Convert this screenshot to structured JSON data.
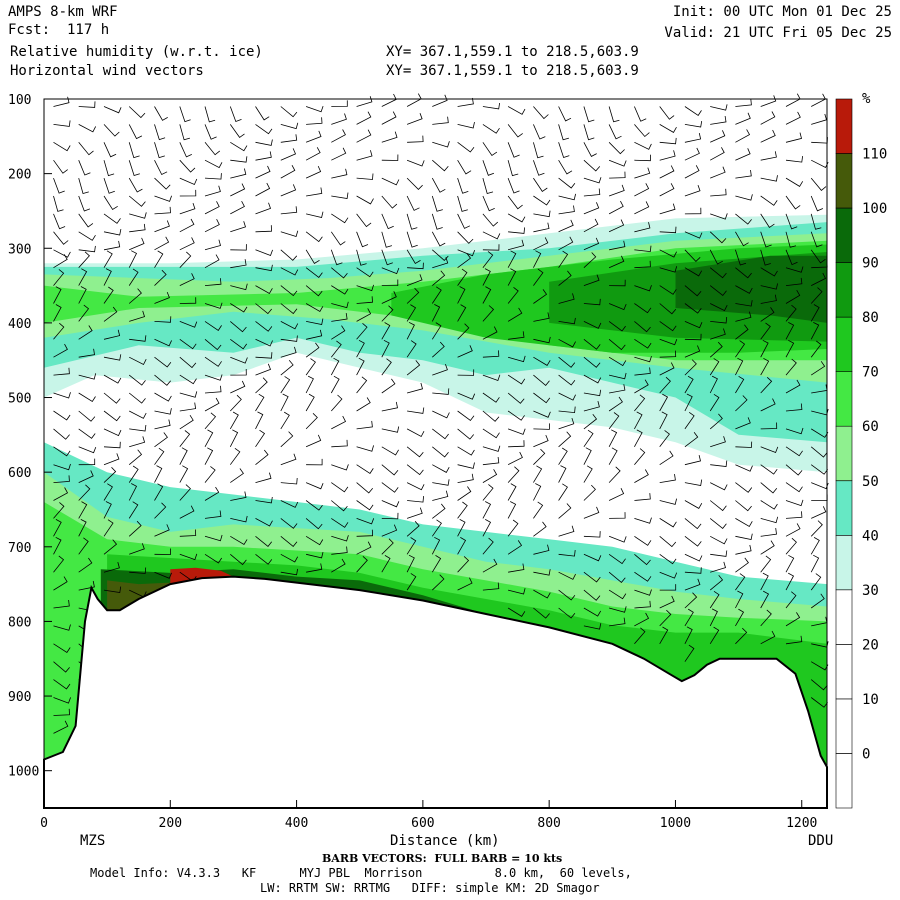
{
  "header": {
    "model": "AMPS 8-km WRF",
    "fcst": "Fcst:  117 h",
    "field1": "Relative humidity (w.r.t. ice)",
    "field2": "Horizontal wind vectors",
    "init": "Init: 00 UTC Mon 01 Dec 25",
    "valid": "Valid: 21 UTC Fri 05 Dec 25",
    "xy1": "XY= 367.1,559.1 to 218.5,603.9",
    "xy2": "XY= 367.1,559.1 to 218.5,603.9"
  },
  "footer": {
    "barb_note": "BARB VECTORS:  FULL BARB = 10 kts",
    "model_info": "Model Info: V4.3.3   KF      MYJ PBL  Morrison          8.0 km,  60 levels,",
    "physics": "LW: RRTM SW: RRTMG   DIFF: simple KM: 2D Smagor"
  },
  "chart_data": {
    "type": "heatmap",
    "xlabel": "Distance (km)",
    "ylabel": "",
    "xlim": [
      0,
      1240
    ],
    "ylim": [
      1050,
      100
    ],
    "x_ticks": [
      0,
      200,
      400,
      600,
      800,
      1000,
      1200
    ],
    "y_ticks": [
      100,
      200,
      300,
      400,
      500,
      600,
      700,
      800,
      900,
      1000
    ],
    "x_end_labels": {
      "left": "MZS",
      "right": "DDU"
    },
    "colorbar": {
      "unit": "%",
      "levels": [
        0,
        10,
        20,
        30,
        40,
        50,
        60,
        70,
        80,
        90,
        100,
        110
      ],
      "colors": [
        "#ffffff",
        "#ffffff",
        "#ffffff",
        "#ffffff",
        "#c8f5e8",
        "#66e8c4",
        "#8ff08f",
        "#44e844",
        "#1fc81f",
        "#109a10",
        "#0a6a0a",
        "#455a0a",
        "#b81a0a"
      ]
    },
    "terrain_pressure": [
      [
        0,
        985
      ],
      [
        30,
        975
      ],
      [
        50,
        940
      ],
      [
        65,
        800
      ],
      [
        75,
        755
      ],
      [
        85,
        770
      ],
      [
        100,
        785
      ],
      [
        120,
        785
      ],
      [
        150,
        770
      ],
      [
        200,
        750
      ],
      [
        250,
        742
      ],
      [
        300,
        740
      ],
      [
        350,
        743
      ],
      [
        400,
        748
      ],
      [
        500,
        758
      ],
      [
        600,
        772
      ],
      [
        700,
        790
      ],
      [
        800,
        808
      ],
      [
        900,
        830
      ],
      [
        950,
        850
      ],
      [
        990,
        870
      ],
      [
        1010,
        880
      ],
      [
        1030,
        872
      ],
      [
        1050,
        858
      ],
      [
        1070,
        850
      ],
      [
        1100,
        850
      ],
      [
        1160,
        850
      ],
      [
        1190,
        870
      ],
      [
        1210,
        920
      ],
      [
        1230,
        980
      ],
      [
        1240,
        995
      ]
    ],
    "rh_layers": [
      {
        "level": 35,
        "top": [
          [
            0,
            320
          ],
          [
            200,
            320
          ],
          [
            400,
            315
          ],
          [
            600,
            300
          ],
          [
            800,
            280
          ],
          [
            1000,
            260
          ],
          [
            1240,
            255
          ]
        ],
        "bottom": [
          [
            0,
            500
          ],
          [
            80,
            470
          ],
          [
            200,
            480
          ],
          [
            300,
            470
          ],
          [
            400,
            440
          ],
          [
            500,
            460
          ],
          [
            600,
            480
          ],
          [
            700,
            520
          ],
          [
            800,
            530
          ],
          [
            900,
            540
          ],
          [
            1000,
            560
          ],
          [
            1100,
            590
          ],
          [
            1240,
            600
          ]
        ]
      },
      {
        "level": 45,
        "top": [
          [
            0,
            325
          ],
          [
            200,
            325
          ],
          [
            400,
            325
          ],
          [
            600,
            310
          ],
          [
            800,
            300
          ],
          [
            1000,
            280
          ],
          [
            1240,
            265
          ]
        ],
        "bottom": [
          [
            0,
            460
          ],
          [
            150,
            430
          ],
          [
            300,
            440
          ],
          [
            400,
            420
          ],
          [
            500,
            440
          ],
          [
            600,
            450
          ],
          [
            700,
            470
          ],
          [
            800,
            460
          ],
          [
            900,
            480
          ],
          [
            1000,
            500
          ],
          [
            1100,
            550
          ],
          [
            1240,
            560
          ]
        ]
      },
      {
        "level": 55,
        "top": [
          [
            0,
            335
          ],
          [
            150,
            340
          ],
          [
            300,
            345
          ],
          [
            450,
            340
          ],
          [
            600,
            330
          ],
          [
            800,
            310
          ],
          [
            1000,
            290
          ],
          [
            1240,
            280
          ]
        ],
        "bottom": [
          [
            0,
            420
          ],
          [
            150,
            400
          ],
          [
            300,
            385
          ],
          [
            450,
            395
          ],
          [
            600,
            410
          ],
          [
            800,
            440
          ],
          [
            1000,
            460
          ],
          [
            1240,
            480
          ]
        ]
      },
      {
        "level": 65,
        "top": [
          [
            0,
            350
          ],
          [
            150,
            365
          ],
          [
            400,
            360
          ],
          [
            600,
            345
          ],
          [
            800,
            325
          ],
          [
            1000,
            300
          ],
          [
            1240,
            290
          ]
        ],
        "bottom": [
          [
            0,
            400
          ],
          [
            150,
            380
          ],
          [
            400,
            375
          ],
          [
            600,
            395
          ],
          [
            800,
            430
          ],
          [
            1000,
            450
          ],
          [
            1240,
            450
          ]
        ]
      },
      {
        "level": 75,
        "top": [
          [
            550,
            360
          ],
          [
            700,
            335
          ],
          [
            900,
            315
          ],
          [
            1100,
            300
          ],
          [
            1240,
            295
          ]
        ],
        "bottom": [
          [
            550,
            390
          ],
          [
            700,
            420
          ],
          [
            900,
            440
          ],
          [
            1100,
            440
          ],
          [
            1240,
            435
          ]
        ]
      },
      {
        "level": 85,
        "top": [
          [
            800,
            345
          ],
          [
            1000,
            320
          ],
          [
            1240,
            305
          ]
        ],
        "bottom": [
          [
            800,
            400
          ],
          [
            1000,
            420
          ],
          [
            1240,
            425
          ]
        ]
      },
      {
        "level": 95,
        "top": [
          [
            1000,
            330
          ],
          [
            1150,
            310
          ],
          [
            1240,
            310
          ]
        ],
        "bottom": [
          [
            1000,
            380
          ],
          [
            1150,
            390
          ],
          [
            1240,
            400
          ]
        ]
      },
      {
        "level": 45,
        "top": [
          [
            0,
            560
          ],
          [
            100,
            600
          ],
          [
            200,
            620
          ],
          [
            300,
            630
          ],
          [
            400,
            640
          ],
          [
            500,
            650
          ],
          [
            600,
            670
          ],
          [
            700,
            680
          ],
          [
            800,
            690
          ],
          [
            900,
            700
          ],
          [
            1000,
            720
          ],
          [
            1100,
            740
          ],
          [
            1240,
            750
          ]
        ],
        "bottom": "terrain"
      },
      {
        "level": 55,
        "top": [
          [
            0,
            600
          ],
          [
            100,
            660
          ],
          [
            200,
            680
          ],
          [
            300,
            670
          ],
          [
            400,
            675
          ],
          [
            500,
            680
          ],
          [
            600,
            700
          ],
          [
            700,
            720
          ],
          [
            800,
            730
          ],
          [
            900,
            745
          ],
          [
            1000,
            760
          ],
          [
            1100,
            770
          ],
          [
            1240,
            780
          ]
        ],
        "bottom": "terrain"
      },
      {
        "level": 65,
        "top": [
          [
            0,
            640
          ],
          [
            100,
            690
          ],
          [
            200,
            700
          ],
          [
            300,
            700
          ],
          [
            400,
            705
          ],
          [
            500,
            710
          ],
          [
            600,
            730
          ],
          [
            700,
            745
          ],
          [
            800,
            760
          ],
          [
            900,
            780
          ],
          [
            1000,
            790
          ],
          [
            1100,
            795
          ],
          [
            1240,
            800
          ]
        ],
        "bottom": "terrain"
      },
      {
        "level": 75,
        "top": [
          [
            100,
            710
          ],
          [
            200,
            715
          ],
          [
            300,
            720
          ],
          [
            400,
            725
          ],
          [
            500,
            735
          ],
          [
            600,
            755
          ],
          [
            700,
            770
          ],
          [
            800,
            785
          ],
          [
            900,
            805
          ],
          [
            1000,
            815
          ],
          [
            1100,
            815
          ],
          [
            1240,
            830
          ]
        ],
        "bottom": "terrain"
      },
      {
        "level": 95,
        "top": [
          [
            90,
            730
          ],
          [
            200,
            735
          ],
          [
            300,
            730
          ],
          [
            400,
            740
          ],
          [
            500,
            745
          ],
          [
            600,
            765
          ],
          [
            700,
            790
          ]
        ],
        "bottom": "terrain"
      },
      {
        "level": 105,
        "top": [
          [
            100,
            745
          ],
          [
            150,
            750
          ],
          [
            200,
            748
          ],
          [
            300,
            745
          ],
          [
            400,
            752
          ],
          [
            480,
            758
          ]
        ],
        "bottom": "terrain"
      },
      {
        "level": 115,
        "top": [
          [
            200,
            730
          ],
          [
            240,
            728
          ],
          [
            280,
            732
          ],
          [
            300,
            740
          ]
        ],
        "bottom": "terrain"
      }
    ]
  }
}
